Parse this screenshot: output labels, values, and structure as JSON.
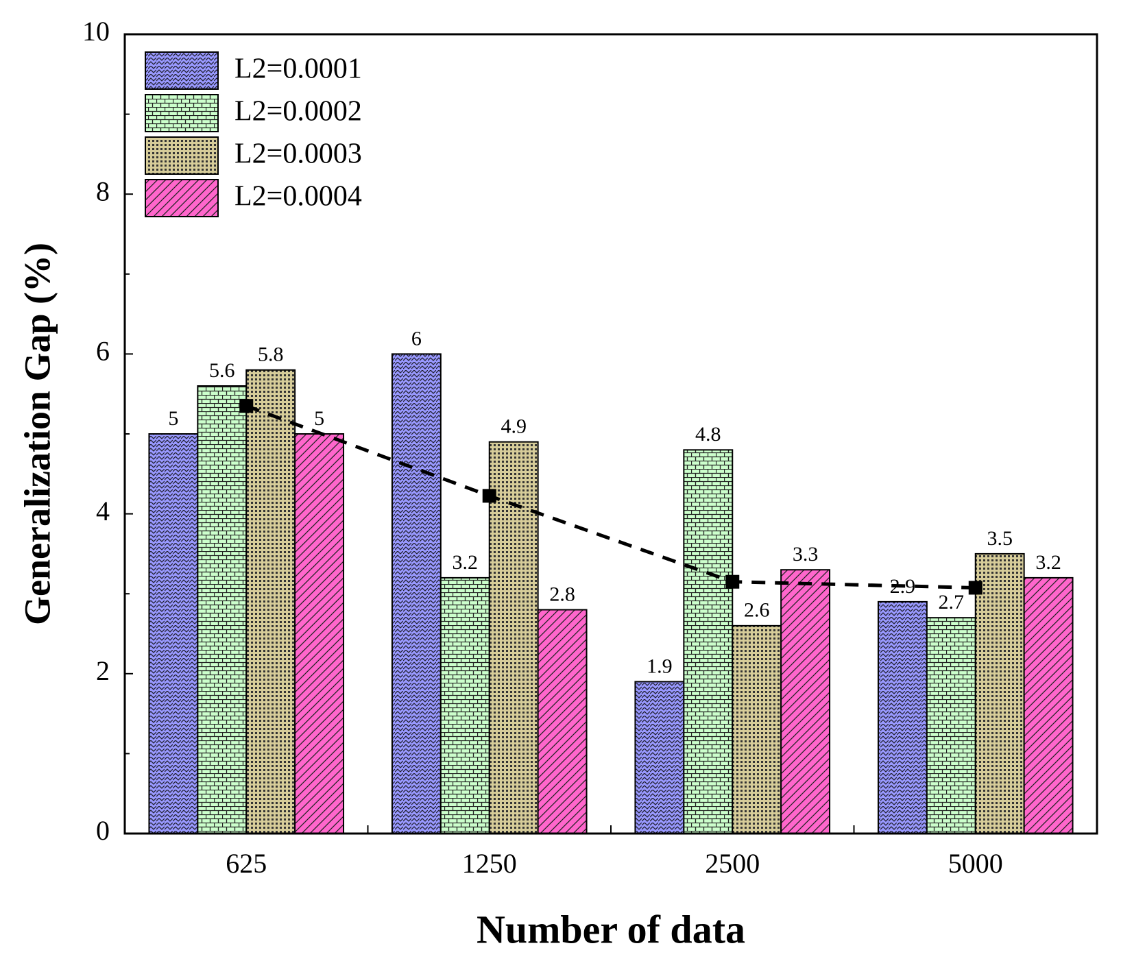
{
  "chart_data": {
    "type": "bar",
    "x_label": "Number of data",
    "y_label": "Generalization Gap (%)",
    "categories": [
      "625",
      "1250",
      "2500",
      "5000"
    ],
    "series": [
      {
        "name": "L2=0.0001",
        "color": "#9999ff",
        "values": [
          5,
          6,
          1.9,
          2.9
        ]
      },
      {
        "name": "L2=0.0002",
        "color": "#ccffcc",
        "values": [
          5.6,
          3.2,
          4.8,
          2.7
        ]
      },
      {
        "name": "L2=0.0003",
        "color": "#d6cc99",
        "values": [
          5.8,
          4.9,
          2.6,
          3.5
        ]
      },
      {
        "name": "L2=0.0004",
        "color": "#ff66cc",
        "values": [
          5,
          2.8,
          3.3,
          3.2
        ]
      }
    ],
    "line": {
      "color": "#000000",
      "values": [
        5.35,
        4.225,
        3.15,
        3.075
      ]
    },
    "ylim": [
      0,
      10
    ],
    "yticks": [
      0,
      2,
      4,
      6,
      8,
      10
    ],
    "legend": "upper left",
    "grid": false
  }
}
